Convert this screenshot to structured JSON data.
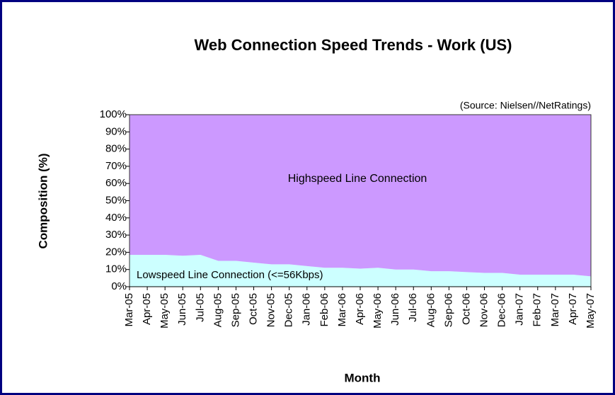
{
  "chart_data": {
    "type": "stacked_area",
    "title": "Web Connection Speed Trends - Work (US)",
    "annotation": "(Source: Nielsen//NetRatings)",
    "x_label": "Month",
    "y_label": "Composition (%)",
    "categories": [
      "Mar-05",
      "Apr-05",
      "May-05",
      "Jun-05",
      "Jul-05",
      "Aug-05",
      "Sep-05",
      "Oct-05",
      "Nov-05",
      "Dec-05",
      "Jan-06",
      "Feb-06",
      "Mar-06",
      "Apr-06",
      "May-06",
      "Jun-06",
      "Jul-06",
      "Aug-06",
      "Sep-06",
      "Oct-06",
      "Nov-06",
      "Dec-06",
      "Jan-07",
      "Feb-07",
      "Mar-07",
      "Apr-07",
      "May-07"
    ],
    "series": [
      {
        "name": "Lowspeed Line Connection (<=56Kbps)",
        "color": "#ccffff",
        "values": [
          18.5,
          18.5,
          18.5,
          18,
          18.5,
          15,
          15,
          14,
          13,
          13,
          12,
          11,
          11,
          10.5,
          11,
          10,
          10,
          9,
          9,
          8.5,
          8,
          8,
          7,
          7,
          7,
          7,
          6
        ]
      },
      {
        "name": "Highspeed Line Connection",
        "color": "#cc99ff",
        "values": [
          81.5,
          81.5,
          81.5,
          82,
          81.5,
          85,
          85,
          86,
          87,
          87,
          88,
          89,
          89,
          89.5,
          89,
          90,
          90,
          91,
          91,
          91.5,
          92,
          92,
          93,
          93,
          93,
          93,
          94
        ]
      }
    ],
    "ylim": [
      0,
      100
    ],
    "yticks": [
      {
        "value": 0,
        "label": "0%"
      },
      {
        "value": 10,
        "label": "10%"
      },
      {
        "value": 20,
        "label": "20%"
      },
      {
        "value": 30,
        "label": "30%"
      },
      {
        "value": 40,
        "label": "40%"
      },
      {
        "value": 50,
        "label": "50%"
      },
      {
        "value": 60,
        "label": "60%"
      },
      {
        "value": 70,
        "label": "70%"
      },
      {
        "value": 80,
        "label": "80%"
      },
      {
        "value": 90,
        "label": "90%"
      },
      {
        "value": 100,
        "label": "100%"
      }
    ]
  }
}
